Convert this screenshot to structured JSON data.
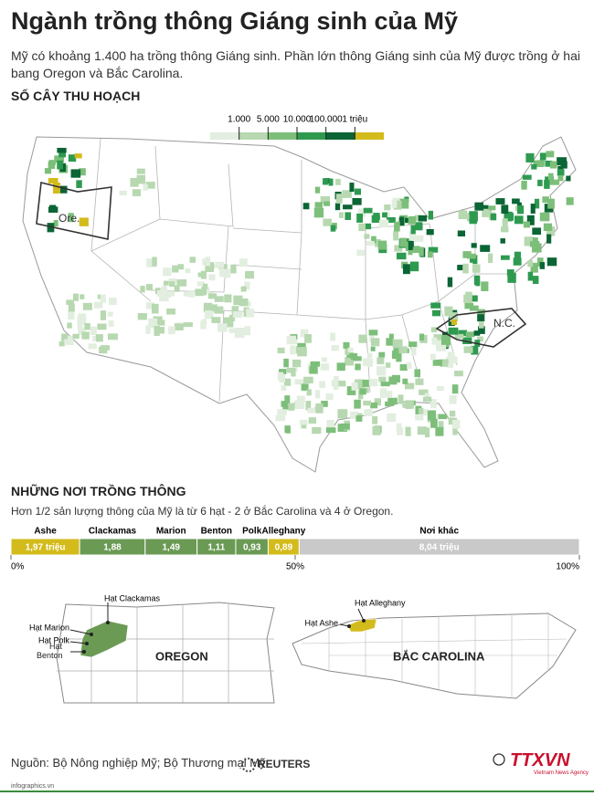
{
  "header": {
    "title": "Ngành trồng thông Giáng sinh của Mỹ",
    "subtitle": "Mỹ có khoảng 1.400 ha trồng thông Giáng sinh. Phần lớn thông Giáng sinh của Mỹ được trồng ở hai bang Oregon và Bắc Carolina."
  },
  "map": {
    "heading": "SỐ CÂY THU HOẠCH",
    "legend": {
      "ticks": [
        {
          "value": 1000,
          "label": "1.000"
        },
        {
          "value": 5000,
          "label": "5.000"
        },
        {
          "value": 10000,
          "label": "10.000"
        },
        {
          "value": 100000,
          "label": "100.000"
        },
        {
          "value": 1000000,
          "label": "1 triệu"
        }
      ],
      "colors": [
        "#e2eedf",
        "#b7d8b0",
        "#7dbf7a",
        "#2e9a50",
        "#0b6534",
        "#d3bb1c"
      ]
    },
    "labels": [
      "Ore.",
      "N.C."
    ]
  },
  "chart_data": {
    "type": "stacked-bar",
    "title": "NHỮNG NƠI TRỒNG THÔNG",
    "subtitle": "Hơn 1/2 sản lượng thông của Mỹ là từ 6 hạt - 2 ở Bắc Carolina và 4 ở Oregon.",
    "categories": [
      "Ashe",
      "Clackamas",
      "Marion",
      "Benton",
      "Polk",
      "Alleghany",
      "Nơi khác"
    ],
    "values": [
      1.97,
      1.88,
      1.49,
      1.11,
      0.93,
      0.89,
      8.04
    ],
    "value_labels": [
      "1,97 triệu",
      "1,88",
      "1,49",
      "1,11",
      "0,93",
      "0,89",
      "8,04 triệu"
    ],
    "colors": [
      "#d3bb1c",
      "#6b9a55",
      "#6b9a55",
      "#6b9a55",
      "#6b9a55",
      "#d3bb1c",
      "#c9c9c9"
    ],
    "xlim": [
      0,
      16.31
    ],
    "xticks": [
      {
        "value": 0,
        "label": "0%"
      },
      {
        "value": 8.155,
        "label": "50%"
      },
      {
        "value": 16.31,
        "label": "100%"
      }
    ]
  },
  "county_maps": [
    {
      "state": "OREGON",
      "labels": [
        "Hạt Clackamas",
        "Hạt Marion",
        "Hạt Polk",
        "Hạt Benton"
      ]
    },
    {
      "state": "BẮC CAROLINA",
      "labels": [
        "Hạt Alleghany",
        "Hạt Ashe"
      ]
    }
  ],
  "footer": {
    "source": "Nguồn: Bộ Nông nghiệp Mỹ; Bộ Thương mại Mỹ",
    "logo": "REUTERS",
    "agency": "TTXVN",
    "agency_sub": "Vietnam News Agency",
    "site": "infographics.vn"
  }
}
